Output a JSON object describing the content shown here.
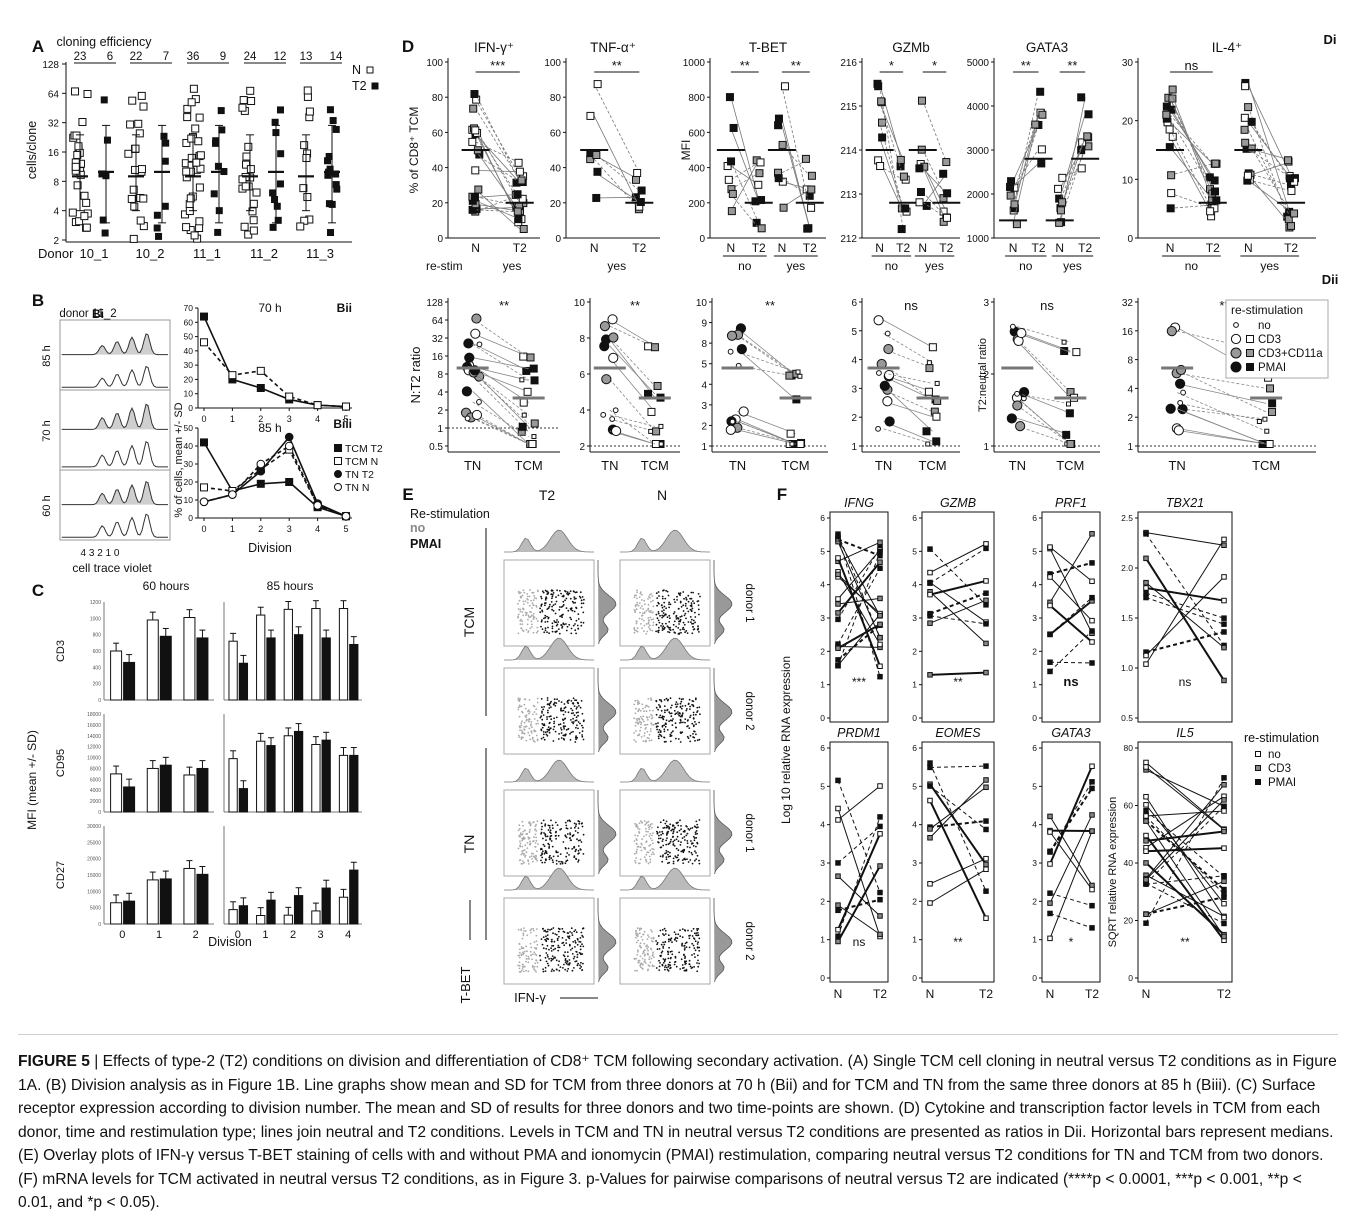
{
  "panel_letters": {
    "A": "A",
    "B": "B",
    "C": "C",
    "D": "D",
    "E": "E",
    "F": "F",
    "Bi": "Bi",
    "Bii": "Bii",
    "Biii": "Biii",
    "Di": "Di",
    "Dii": "Dii"
  },
  "panelA": {
    "top_label": "cloning efficiency",
    "efficiency": [
      "23",
      "6",
      "22",
      "7",
      "36",
      "9",
      "24",
      "12",
      "13",
      "14"
    ],
    "ylabel": "cells/clone",
    "yticks": [
      "2",
      "4",
      "8",
      "16",
      "32",
      "64",
      "128"
    ],
    "xlabel": "Donor",
    "donors": [
      "10_1",
      "10_2",
      "11_1",
      "11_2",
      "11_3"
    ],
    "legend": [
      {
        "label": "N",
        "marker": "open-square"
      },
      {
        "label": "T2",
        "marker": "filled-square"
      }
    ]
  },
  "panelB": {
    "donor": "donor 11_2",
    "rows": [
      "85 h",
      "70 h",
      "60 h"
    ],
    "divisions": "4 3 2 1 0",
    "xlabel": "cell trace violet",
    "bii_title": "70 h",
    "biii_title": "85 h",
    "ylabel": "% of cells, mean +/- SD",
    "xaxis": "Division",
    "xticks": [
      "0",
      "1",
      "2",
      "3",
      "4",
      "5"
    ],
    "bii_yticks": [
      "0",
      "10",
      "20",
      "30",
      "40",
      "50",
      "60",
      "70"
    ],
    "biii_yticks": [
      "0",
      "10",
      "20",
      "30",
      "40",
      "50"
    ],
    "legend": [
      "TCM T2",
      "TCM N",
      "TN T2",
      "TN N"
    ]
  },
  "panelC": {
    "col_titles": [
      "60 hours",
      "85 hours"
    ],
    "ylabel": "MFI (mean +/- SD)",
    "rows": [
      {
        "name": "CD3",
        "ticks": [
          "0",
          "200",
          "400",
          "600",
          "800",
          "1000",
          "1200"
        ]
      },
      {
        "name": "CD95",
        "ticks": [
          "0",
          "2000",
          "4000",
          "6000",
          "8000",
          "10000",
          "12000",
          "14000",
          "16000",
          "18000"
        ]
      },
      {
        "name": "CD27",
        "ticks": [
          "0",
          "5000",
          "10000",
          "15000",
          "20000",
          "25000",
          "30000"
        ]
      }
    ],
    "xticks60": [
      "0",
      "1",
      "2"
    ],
    "xticks85": [
      "0",
      "1",
      "2",
      "3",
      "4"
    ],
    "xlabel": "Division"
  },
  "panelDi": {
    "plots": [
      {
        "title": "IFN-γ⁺",
        "sig": "***"
      },
      {
        "title": "TNF-α⁺",
        "sig": "**"
      },
      {
        "title": "T-BET",
        "sig": "**  **"
      },
      {
        "title": "GZMb",
        "sig": "*  *"
      },
      {
        "title": "GATA3",
        "sig": "**  **"
      },
      {
        "title": "IL-4⁺",
        "sig": "ns"
      }
    ],
    "ylabel1": "% of CD8⁺ TCM",
    "ylabel2": "MFI",
    "restim_label": "re-stim",
    "x_N": "N",
    "x_T2": "T2",
    "no": "no",
    "yes": "yes"
  },
  "panelDii": {
    "ylabel": "N:T2 ratio",
    "ylabel2": "T2:neutral ratio",
    "sigs": [
      "**",
      "**",
      "**",
      "ns",
      "ns",
      "***"
    ],
    "xT_N": "TN",
    "xT_CM": "TCM",
    "legend_title": "re-stimulation",
    "legend": [
      "no",
      "CD3",
      "CD3+CD11a",
      "PMAI"
    ]
  },
  "panelE": {
    "legend_title": "Re-stimulation",
    "legend_no": "no",
    "legend_pmai": "PMAI",
    "cols": [
      "T2",
      "N"
    ],
    "rows": [
      "TCM",
      "TN"
    ],
    "donors": [
      "donor 1",
      "donor 2",
      "donor 1",
      "donor 2"
    ],
    "yaxis": "T-BET",
    "xaxis": "IFN-γ"
  },
  "panelF": {
    "genes_top": [
      "IFNG",
      "GZMB",
      "PRF1",
      "TBX21"
    ],
    "genes_bottom": [
      "PRDM1",
      "EOMES",
      "GATA3",
      "IL5"
    ],
    "sig_top": [
      "***",
      "**",
      "ns",
      "ns"
    ],
    "sig_bottom": [
      "ns",
      "**",
      "*",
      "**"
    ],
    "ylabel": "Log 10 relative RNA expression",
    "ylabel_il5": "SQRT relative RNA expression",
    "x_N": "N",
    "x_T2": "T2",
    "legend_title": "re-stimulation",
    "legend": [
      "no",
      "CD3",
      "PMAI"
    ]
  },
  "caption": {
    "fig": "FIGURE 5",
    "sep": " | ",
    "text": "Effects of type-2 (T2) conditions on division and differentiation of CD8⁺ TCM following secondary activation. (A) Single TCM cell cloning in neutral versus T2 conditions as in Figure 1A. (B) Division analysis as in Figure 1B. Line graphs show mean and SD for TCM from three donors at 70 h (Bii) and for TCM and TN from the same three donors at 85 h (Biii). (C) Surface receptor expression according to division number. The mean and SD of results for three donors and two time-points are shown. (D) Cytokine and transcription factor levels in TCM from each donor, time and restimulation type; lines join neutral and T2 conditions. Levels in TCM and TN in neutral versus T2 conditions are presented as ratios in Dii. Horizontal bars represent medians. (E) Overlay plots of IFN-γ versus T-BET staining of cells with and without PMA and ionomycin (PMAI) restimulation, comparing neutral versus T2 conditions for TN and TCM from two donors. (F) mRNA levels for TCM activated in neutral versus T2 conditions, as in Figure 3. p-Values for pairwise comparisons of neutral versus T2 are indicated (****p < 0.0001, ***p < 0.001, **p < 0.01, and *p < 0.05)."
  }
}
